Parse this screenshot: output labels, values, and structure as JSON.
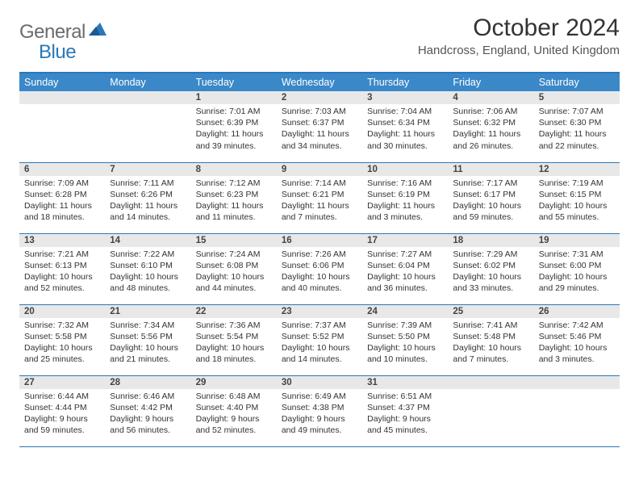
{
  "logo": {
    "general": "General",
    "blue": "Blue"
  },
  "title": "October 2024",
  "location": "Handcross, England, United Kingdom",
  "weekday_labels": [
    "Sunday",
    "Monday",
    "Tuesday",
    "Wednesday",
    "Thursday",
    "Friday",
    "Saturday"
  ],
  "colors": {
    "header_bg": "#3a88c8",
    "border": "#2a78b8",
    "daynum_bg": "#e8e8e8",
    "text": "#333333"
  },
  "grid": [
    [
      null,
      null,
      {
        "n": "1",
        "sr": "7:01 AM",
        "ss": "6:39 PM",
        "dl": "11 hours and 39 minutes."
      },
      {
        "n": "2",
        "sr": "7:03 AM",
        "ss": "6:37 PM",
        "dl": "11 hours and 34 minutes."
      },
      {
        "n": "3",
        "sr": "7:04 AM",
        "ss": "6:34 PM",
        "dl": "11 hours and 30 minutes."
      },
      {
        "n": "4",
        "sr": "7:06 AM",
        "ss": "6:32 PM",
        "dl": "11 hours and 26 minutes."
      },
      {
        "n": "5",
        "sr": "7:07 AM",
        "ss": "6:30 PM",
        "dl": "11 hours and 22 minutes."
      }
    ],
    [
      {
        "n": "6",
        "sr": "7:09 AM",
        "ss": "6:28 PM",
        "dl": "11 hours and 18 minutes."
      },
      {
        "n": "7",
        "sr": "7:11 AM",
        "ss": "6:26 PM",
        "dl": "11 hours and 14 minutes."
      },
      {
        "n": "8",
        "sr": "7:12 AM",
        "ss": "6:23 PM",
        "dl": "11 hours and 11 minutes."
      },
      {
        "n": "9",
        "sr": "7:14 AM",
        "ss": "6:21 PM",
        "dl": "11 hours and 7 minutes."
      },
      {
        "n": "10",
        "sr": "7:16 AM",
        "ss": "6:19 PM",
        "dl": "11 hours and 3 minutes."
      },
      {
        "n": "11",
        "sr": "7:17 AM",
        "ss": "6:17 PM",
        "dl": "10 hours and 59 minutes."
      },
      {
        "n": "12",
        "sr": "7:19 AM",
        "ss": "6:15 PM",
        "dl": "10 hours and 55 minutes."
      }
    ],
    [
      {
        "n": "13",
        "sr": "7:21 AM",
        "ss": "6:13 PM",
        "dl": "10 hours and 52 minutes."
      },
      {
        "n": "14",
        "sr": "7:22 AM",
        "ss": "6:10 PM",
        "dl": "10 hours and 48 minutes."
      },
      {
        "n": "15",
        "sr": "7:24 AM",
        "ss": "6:08 PM",
        "dl": "10 hours and 44 minutes."
      },
      {
        "n": "16",
        "sr": "7:26 AM",
        "ss": "6:06 PM",
        "dl": "10 hours and 40 minutes."
      },
      {
        "n": "17",
        "sr": "7:27 AM",
        "ss": "6:04 PM",
        "dl": "10 hours and 36 minutes."
      },
      {
        "n": "18",
        "sr": "7:29 AM",
        "ss": "6:02 PM",
        "dl": "10 hours and 33 minutes."
      },
      {
        "n": "19",
        "sr": "7:31 AM",
        "ss": "6:00 PM",
        "dl": "10 hours and 29 minutes."
      }
    ],
    [
      {
        "n": "20",
        "sr": "7:32 AM",
        "ss": "5:58 PM",
        "dl": "10 hours and 25 minutes."
      },
      {
        "n": "21",
        "sr": "7:34 AM",
        "ss": "5:56 PM",
        "dl": "10 hours and 21 minutes."
      },
      {
        "n": "22",
        "sr": "7:36 AM",
        "ss": "5:54 PM",
        "dl": "10 hours and 18 minutes."
      },
      {
        "n": "23",
        "sr": "7:37 AM",
        "ss": "5:52 PM",
        "dl": "10 hours and 14 minutes."
      },
      {
        "n": "24",
        "sr": "7:39 AM",
        "ss": "5:50 PM",
        "dl": "10 hours and 10 minutes."
      },
      {
        "n": "25",
        "sr": "7:41 AM",
        "ss": "5:48 PM",
        "dl": "10 hours and 7 minutes."
      },
      {
        "n": "26",
        "sr": "7:42 AM",
        "ss": "5:46 PM",
        "dl": "10 hours and 3 minutes."
      }
    ],
    [
      {
        "n": "27",
        "sr": "6:44 AM",
        "ss": "4:44 PM",
        "dl": "9 hours and 59 minutes."
      },
      {
        "n": "28",
        "sr": "6:46 AM",
        "ss": "4:42 PM",
        "dl": "9 hours and 56 minutes."
      },
      {
        "n": "29",
        "sr": "6:48 AM",
        "ss": "4:40 PM",
        "dl": "9 hours and 52 minutes."
      },
      {
        "n": "30",
        "sr": "6:49 AM",
        "ss": "4:38 PM",
        "dl": "9 hours and 49 minutes."
      },
      {
        "n": "31",
        "sr": "6:51 AM",
        "ss": "4:37 PM",
        "dl": "9 hours and 45 minutes."
      },
      null,
      null
    ]
  ]
}
